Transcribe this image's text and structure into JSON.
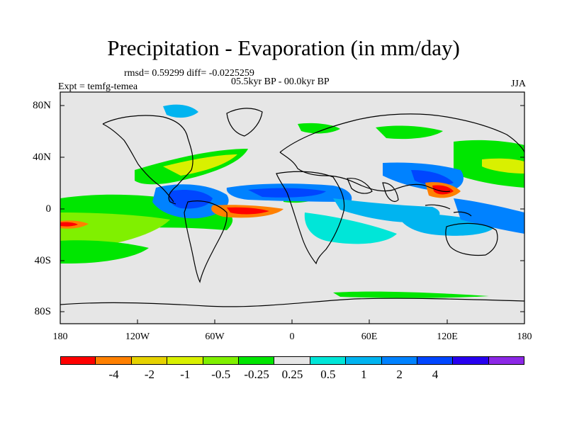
{
  "title": "Precipitation - Evaporation (in mm/day)",
  "stats_line": "rmsd= 0.59299 diff= -0.0225259",
  "period_line": "05.5kyr BP - 00.0kyr BP",
  "experiment_line": "Expt = temfg-temea",
  "season": "JJA",
  "latitude_labels": [
    "80N",
    "40N",
    "0",
    "40S",
    "80S"
  ],
  "longitude_labels": [
    "180",
    "120W",
    "60W",
    "0",
    "60E",
    "120E",
    "180"
  ],
  "colorbar": {
    "colors": [
      "#ff0000",
      "#ff8000",
      "#e6d200",
      "#d9f000",
      "#80f000",
      "#00e600",
      "#e6e6e6",
      "#00e6d8",
      "#00b4f0",
      "#0082ff",
      "#0046ff",
      "#2800f0",
      "#8c28e6"
    ],
    "labels": [
      "-4",
      "-2",
      "-1",
      "-0.5",
      "-0.25",
      "0.25",
      "0.5",
      "1",
      "2",
      "4"
    ]
  },
  "colors": {
    "ocean_background": "#e6e6e6",
    "coastline": "#000000"
  }
}
